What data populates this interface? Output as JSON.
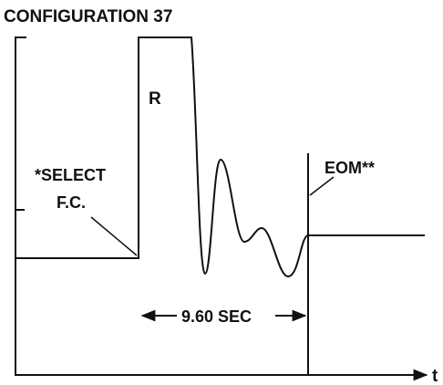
{
  "title": "CONFIGURATION 37",
  "labels": {
    "pulse": "R",
    "select_line1": "*SELECT",
    "select_line2": "F.C.",
    "eom": "EOM**",
    "duration": "9.60 SEC",
    "x_axis": "t"
  }
}
